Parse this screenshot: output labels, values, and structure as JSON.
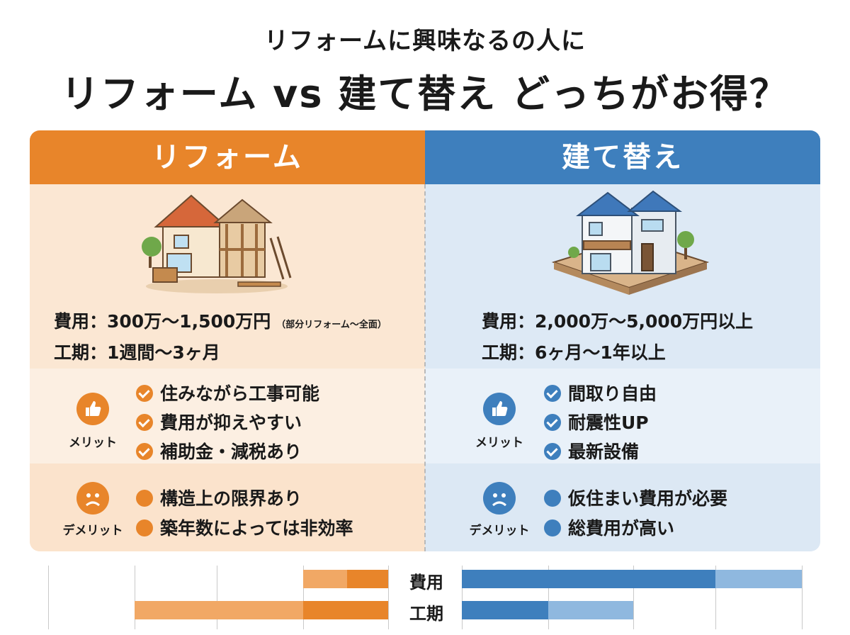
{
  "header": {
    "subtitle": "リフォームに興味なるの人に",
    "title": "リフォーム vs 建て替え どっちがお得？"
  },
  "columns": {
    "reform": {
      "heading": "リフォーム",
      "cost_line": "費用：300万〜1,500万円",
      "cost_note": "（部分リフォーム〜全面）",
      "period_line": "工期：1週間〜3ヶ月",
      "merit_label": "メリット",
      "merits": [
        "住みながら工事可能",
        "費用が抑えやすい",
        "補助金・減税あり"
      ],
      "demerit_label": "デメリット",
      "demerits": [
        "構造上の限界あり",
        "築年数によっては非効率"
      ],
      "color": "#e8852a"
    },
    "rebuild": {
      "heading": "建て替え",
      "cost_line": "費用：2,000万〜5,000万円以上",
      "period_line": "工期：6ヶ月〜1年以上",
      "merit_label": "メリット",
      "merits": [
        "間取り自由",
        "耐震性UP",
        "最新設備"
      ],
      "demerit_label": "デメリット",
      "demerits": [
        "仮住まい費用が必要",
        "総費用が高い"
      ],
      "color": "#3e7fbd"
    }
  },
  "icons": {
    "merit": "thumbs-up-icon",
    "demerit": "sad-face-icon",
    "merit_item": "check-circle-icon",
    "demerit_item": "dot-icon",
    "reform_image": "renovating-house-icon",
    "rebuild_image": "new-house-icon"
  },
  "chart_data": {
    "type": "bar",
    "categories": [
      "費用",
      "工期"
    ],
    "series": [
      {
        "values": [
          0.3,
          0.25
        ]
      },
      {
        "values": [
          0.5,
          0.5
        ]
      }
    ]
  }
}
